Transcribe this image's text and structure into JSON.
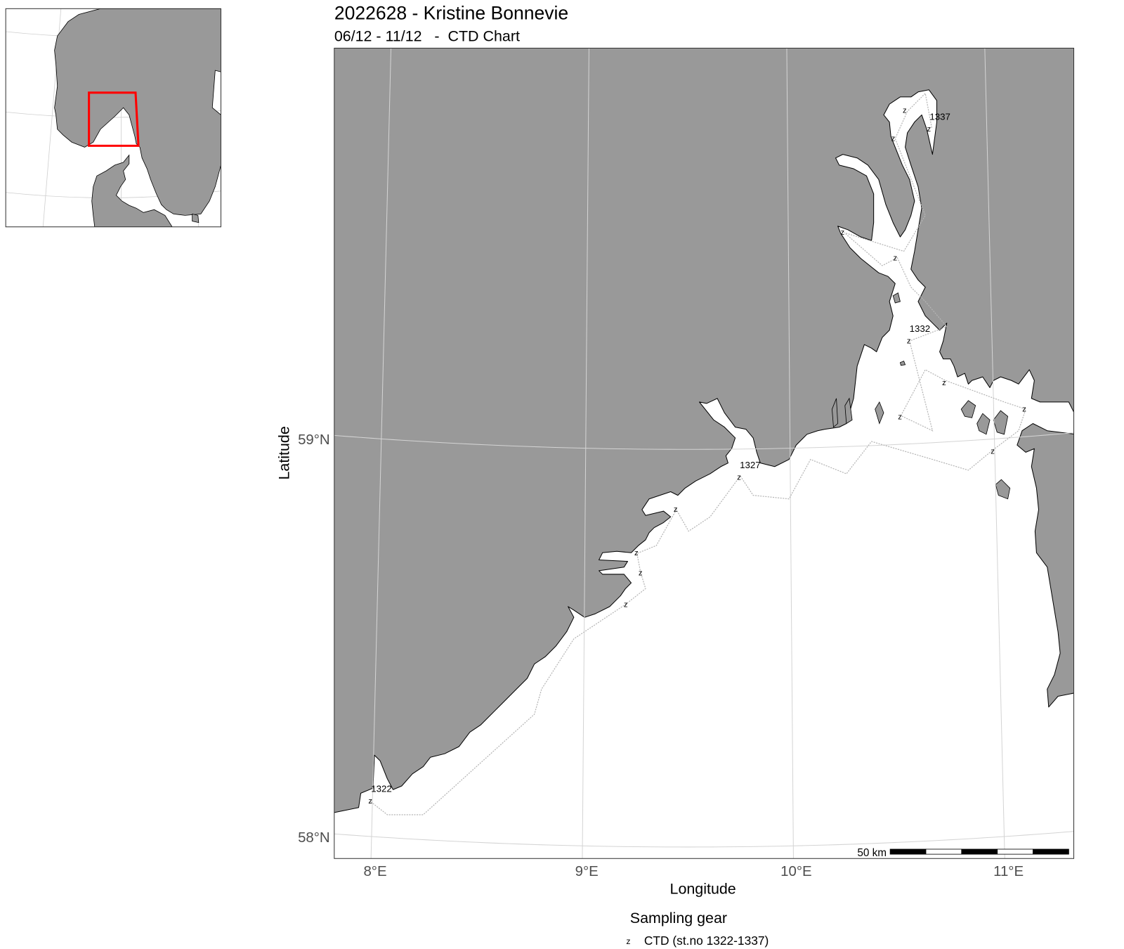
{
  "title": "2022628 - Kristine Bonnevie",
  "subtitle": "06/12 - 11/12   -  CTD Chart",
  "map": {
    "xlabel": "Longitude",
    "ylabel": "Latitude",
    "lon_grid": [
      8,
      9,
      10,
      11
    ],
    "lat_grid": [
      58,
      59
    ],
    "x_ticks": [
      "8°E",
      "9°E",
      "10°E",
      "11°E"
    ],
    "y_ticks": [
      "59°N",
      "58°N"
    ],
    "lon_range": [
      7.82,
      11.33
    ],
    "lat_range": [
      57.95,
      59.98
    ],
    "land_color": "#999999",
    "water_color": "#ffffff",
    "grid_color": "#d4d4d4",
    "track_color": "#b5b5b5"
  },
  "scale_bar": {
    "label": "50 km",
    "segments": 5
  },
  "legend": {
    "title": "Sampling gear",
    "items": [
      {
        "symbol": "z",
        "label": "CTD (st.no 1322-1337)"
      }
    ]
  },
  "stations": [
    {
      "lon": 7.99,
      "lat": 58.09,
      "label": "1322"
    },
    {
      "lon": 9.2,
      "lat": 58.61,
      "label": ""
    },
    {
      "lon": 9.27,
      "lat": 58.69,
      "label": ""
    },
    {
      "lon": 9.25,
      "lat": 58.74,
      "label": ""
    },
    {
      "lon": 9.44,
      "lat": 58.85,
      "label": ""
    },
    {
      "lon": 9.75,
      "lat": 58.93,
      "label": "1327"
    },
    {
      "lon": 10.54,
      "lat": 59.07,
      "label": ""
    },
    {
      "lon": 10.76,
      "lat": 59.15,
      "label": ""
    },
    {
      "lon": 10.99,
      "lat": 58.97,
      "label": ""
    },
    {
      "lon": 10.59,
      "lat": 59.26,
      "label": "1332"
    },
    {
      "lon": 11.15,
      "lat": 59.07,
      "label": ""
    },
    {
      "lon": 10.53,
      "lat": 59.47,
      "label": ""
    },
    {
      "lon": 10.27,
      "lat": 59.54,
      "label": ""
    },
    {
      "lon": 10.53,
      "lat": 59.77,
      "label": ""
    },
    {
      "lon": 10.59,
      "lat": 59.84,
      "label": ""
    },
    {
      "lon": 10.71,
      "lat": 59.79,
      "label": "1337"
    }
  ],
  "inset": {
    "highlight_color": "#ff0000",
    "land_color": "#999999"
  }
}
